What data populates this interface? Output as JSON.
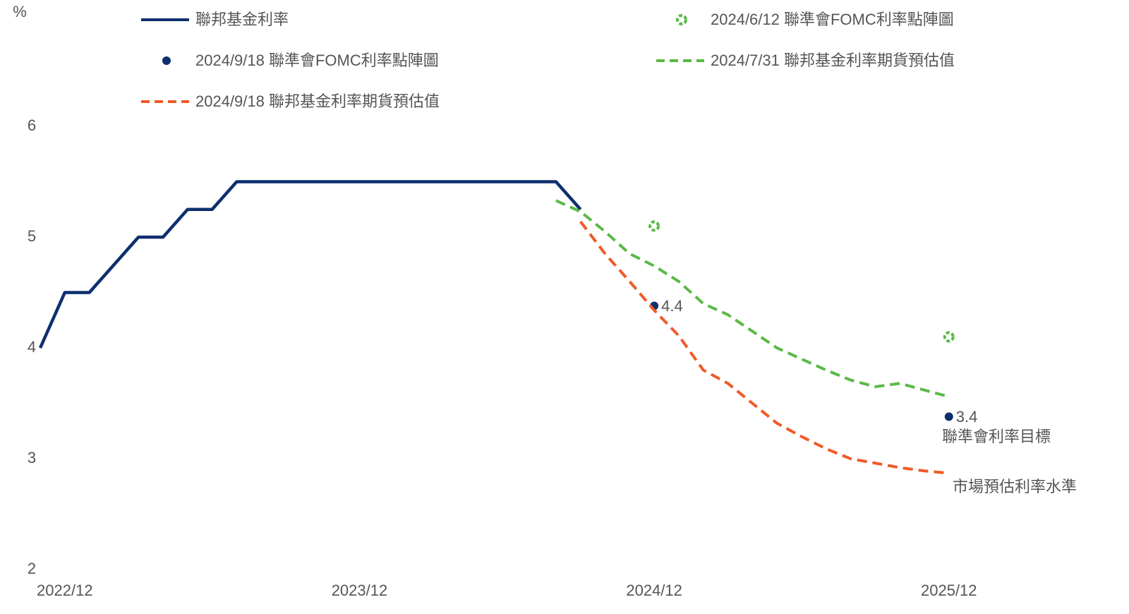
{
  "chart_data": {
    "type": "line",
    "y_unit_label": "%",
    "ylim": [
      2,
      6
    ],
    "yticks": [
      2,
      3,
      4,
      5,
      6
    ],
    "xlim": [
      "2022/11",
      "2026/04"
    ],
    "xticks": [
      "2022/12",
      "2023/12",
      "2024/12",
      "2025/12"
    ],
    "grid": false,
    "series": [
      {
        "name": "聯邦基金利率",
        "type": "line",
        "dashed": false,
        "color": "#0e2f6e",
        "x": [
          "2022/11",
          "2022/12",
          "2023/01",
          "2023/02",
          "2023/03",
          "2023/04",
          "2023/05",
          "2023/06",
          "2023/07",
          "2023/08",
          "2023/09",
          "2023/10",
          "2023/11",
          "2023/12",
          "2024/01",
          "2024/02",
          "2024/03",
          "2024/04",
          "2024/05",
          "2024/06",
          "2024/07",
          "2024/08",
          "2024/09"
        ],
        "values": [
          4.0,
          4.5,
          4.5,
          4.75,
          5.0,
          5.0,
          5.25,
          5.25,
          5.5,
          5.5,
          5.5,
          5.5,
          5.5,
          5.5,
          5.5,
          5.5,
          5.5,
          5.5,
          5.5,
          5.5,
          5.5,
          5.5,
          5.25
        ]
      },
      {
        "name": "2024/6/12 聯準會FOMC利率點陣圖",
        "type": "scatter",
        "marker": "ring",
        "color": "#5ab946",
        "x": [
          "2024/12",
          "2025/12"
        ],
        "values": [
          5.1,
          4.1
        ]
      },
      {
        "name": "2024/9/18 聯準會FOMC利率點陣圖",
        "type": "scatter",
        "marker": "dot",
        "color": "#0e2f6e",
        "x": [
          "2024/12",
          "2025/12"
        ],
        "values": [
          4.38,
          3.38
        ],
        "value_labels": [
          "4.4",
          "3.4"
        ]
      },
      {
        "name": "2024/7/31 聯邦基金利率期貨預估值",
        "type": "line",
        "dashed": true,
        "color": "#5ab946",
        "x": [
          "2024/08",
          "2024/09",
          "2024/10",
          "2024/11",
          "2024/12",
          "2025/01",
          "2025/02",
          "2025/03",
          "2025/04",
          "2025/05",
          "2025/06",
          "2025/07",
          "2025/08",
          "2025/09",
          "2025/10",
          "2025/11",
          "2025/12"
        ],
        "values": [
          5.33,
          5.23,
          5.05,
          4.85,
          4.74,
          4.6,
          4.4,
          4.3,
          4.15,
          4.0,
          3.9,
          3.8,
          3.71,
          3.65,
          3.68,
          3.62,
          3.56
        ]
      },
      {
        "name": "2024/9/18 聯邦基金利率期貨預估值",
        "type": "line",
        "dashed": true,
        "color": "#f05a28",
        "x": [
          "2024/09",
          "2024/10",
          "2024/11",
          "2024/12",
          "2025/01",
          "2025/02",
          "2025/03",
          "2025/04",
          "2025/05",
          "2025/06",
          "2025/07",
          "2025/08",
          "2025/09",
          "2025/10",
          "2025/11",
          "2025/12"
        ],
        "values": [
          5.14,
          4.85,
          4.6,
          4.34,
          4.11,
          3.8,
          3.68,
          3.5,
          3.32,
          3.2,
          3.09,
          3.0,
          2.96,
          2.92,
          2.89,
          2.87
        ]
      }
    ],
    "annotations": [
      {
        "text": "聯準會利率目標",
        "color": "#0e2f6e"
      },
      {
        "text": "市場預估利率水準",
        "color": "#f05a28"
      }
    ]
  }
}
